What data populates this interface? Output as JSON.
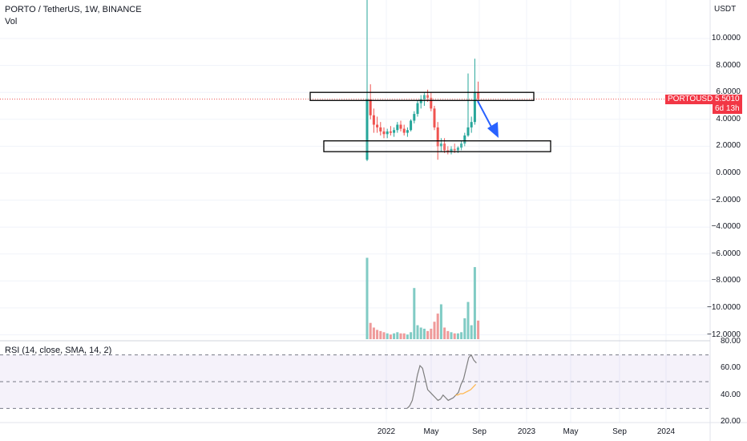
{
  "header": {
    "title": "PORTO / TetherUS, 1W, BINANCE",
    "volume_label": "Vol"
  },
  "axis": {
    "currency": "USDT",
    "price_ticks": [
      "10.0000",
      "8.0000",
      "6.0000",
      "4.0000",
      "2.0000",
      "0.0000",
      "−2.0000",
      "−4.0000",
      "−6.0000",
      "−8.0000",
      "−10.0000",
      "−12.0000"
    ],
    "price_values": [
      10,
      8,
      6,
      4,
      2,
      0,
      -2,
      -4,
      -6,
      -8,
      -10,
      -12
    ],
    "time_ticks": [
      "2022",
      "May",
      "Sep",
      "2023",
      "May",
      "Sep",
      "2024"
    ]
  },
  "price_badge": {
    "symbol": "PORTOUSDT",
    "price": "5.5010",
    "countdown": "6d 13h"
  },
  "rsi": {
    "label": "RSI (14, close, SMA, 14, 2)",
    "ticks": [
      "80.00",
      "60.00",
      "40.00",
      "20.00"
    ],
    "tick_values": [
      80,
      60,
      40,
      20
    ]
  },
  "colors": {
    "up": "#26a69a",
    "down": "#ef5350",
    "volume_up": "#80cbc4",
    "volume_down": "#ef9a9a",
    "rsi_line": "#7e7e7e",
    "rsi_sma": "#ffb74d",
    "drawing": "#000000",
    "arrow": "#2962ff"
  },
  "chart_data": {
    "type": "candlestick",
    "candles": [
      {
        "o": 1.0,
        "h": 16.0,
        "l": 0.9,
        "c": 5.5,
        "v": 7.0
      },
      {
        "o": 5.5,
        "h": 6.6,
        "l": 4.0,
        "c": 4.3,
        "v": 1.4
      },
      {
        "o": 4.3,
        "h": 4.8,
        "l": 3.0,
        "c": 3.6,
        "v": 1.0
      },
      {
        "o": 3.6,
        "h": 4.2,
        "l": 3.0,
        "c": 3.4,
        "v": 0.8
      },
      {
        "o": 3.4,
        "h": 3.8,
        "l": 2.8,
        "c": 3.1,
        "v": 0.7
      },
      {
        "o": 3.1,
        "h": 3.4,
        "l": 2.6,
        "c": 2.9,
        "v": 0.6
      },
      {
        "o": 2.9,
        "h": 3.3,
        "l": 2.6,
        "c": 3.1,
        "v": 0.5
      },
      {
        "o": 3.1,
        "h": 3.5,
        "l": 2.8,
        "c": 3.0,
        "v": 0.4
      },
      {
        "o": 3.0,
        "h": 3.4,
        "l": 2.7,
        "c": 3.2,
        "v": 0.5
      },
      {
        "o": 3.2,
        "h": 3.8,
        "l": 3.0,
        "c": 3.6,
        "v": 0.6
      },
      {
        "o": 3.6,
        "h": 3.9,
        "l": 3.1,
        "c": 3.3,
        "v": 0.5
      },
      {
        "o": 3.3,
        "h": 3.6,
        "l": 2.8,
        "c": 3.0,
        "v": 0.5
      },
      {
        "o": 3.0,
        "h": 3.4,
        "l": 2.7,
        "c": 3.2,
        "v": 0.4
      },
      {
        "o": 3.2,
        "h": 4.0,
        "l": 3.1,
        "c": 3.9,
        "v": 0.6
      },
      {
        "o": 3.9,
        "h": 4.6,
        "l": 3.7,
        "c": 4.4,
        "v": 4.4
      },
      {
        "o": 4.4,
        "h": 5.4,
        "l": 4.2,
        "c": 5.2,
        "v": 1.2
      },
      {
        "o": 5.2,
        "h": 5.8,
        "l": 4.8,
        "c": 5.5,
        "v": 1.0
      },
      {
        "o": 5.5,
        "h": 6.0,
        "l": 5.0,
        "c": 5.8,
        "v": 0.9
      },
      {
        "o": 5.8,
        "h": 6.2,
        "l": 5.3,
        "c": 5.6,
        "v": 0.7
      },
      {
        "o": 5.6,
        "h": 6.0,
        "l": 4.6,
        "c": 4.8,
        "v": 0.9
      },
      {
        "o": 4.8,
        "h": 5.0,
        "l": 3.2,
        "c": 3.4,
        "v": 1.5
      },
      {
        "o": 3.4,
        "h": 3.8,
        "l": 1.0,
        "c": 2.0,
        "v": 2.2
      },
      {
        "o": 2.0,
        "h": 2.6,
        "l": 1.6,
        "c": 2.2,
        "v": 3.0
      },
      {
        "o": 2.2,
        "h": 2.6,
        "l": 1.5,
        "c": 1.7,
        "v": 1.0
      },
      {
        "o": 1.7,
        "h": 2.0,
        "l": 1.4,
        "c": 1.6,
        "v": 0.7
      },
      {
        "o": 1.6,
        "h": 2.0,
        "l": 1.4,
        "c": 1.8,
        "v": 0.6
      },
      {
        "o": 1.8,
        "h": 2.2,
        "l": 1.5,
        "c": 1.7,
        "v": 0.5
      },
      {
        "o": 1.7,
        "h": 2.0,
        "l": 1.5,
        "c": 1.9,
        "v": 0.5
      },
      {
        "o": 1.9,
        "h": 2.4,
        "l": 1.7,
        "c": 2.2,
        "v": 0.6
      },
      {
        "o": 2.2,
        "h": 3.0,
        "l": 2.0,
        "c": 2.8,
        "v": 1.8
      },
      {
        "o": 2.8,
        "h": 7.4,
        "l": 2.7,
        "c": 3.4,
        "v": 3.2
      },
      {
        "o": 3.4,
        "h": 4.2,
        "l": 3.0,
        "c": 3.8,
        "v": 1.2
      },
      {
        "o": 3.8,
        "h": 8.5,
        "l": 3.6,
        "c": 6.0,
        "v": 6.2
      },
      {
        "o": 6.0,
        "h": 6.8,
        "l": 5.2,
        "c": 5.501,
        "v": 1.6
      }
    ],
    "rsi": [
      30,
      32,
      36,
      45,
      55,
      62,
      60,
      52,
      44,
      42,
      40,
      38,
      36,
      37,
      40,
      38,
      36,
      37,
      38,
      40,
      42,
      48,
      52,
      60,
      68,
      70,
      66,
      64
    ],
    "rsi_sma": [
      40,
      40,
      41,
      41,
      42,
      43,
      44,
      46,
      48
    ],
    "zones": [
      {
        "name": "resistance",
        "top": 6.0,
        "bottom": 5.4
      },
      {
        "name": "support",
        "top": 2.4,
        "bottom": 1.6
      }
    ]
  }
}
